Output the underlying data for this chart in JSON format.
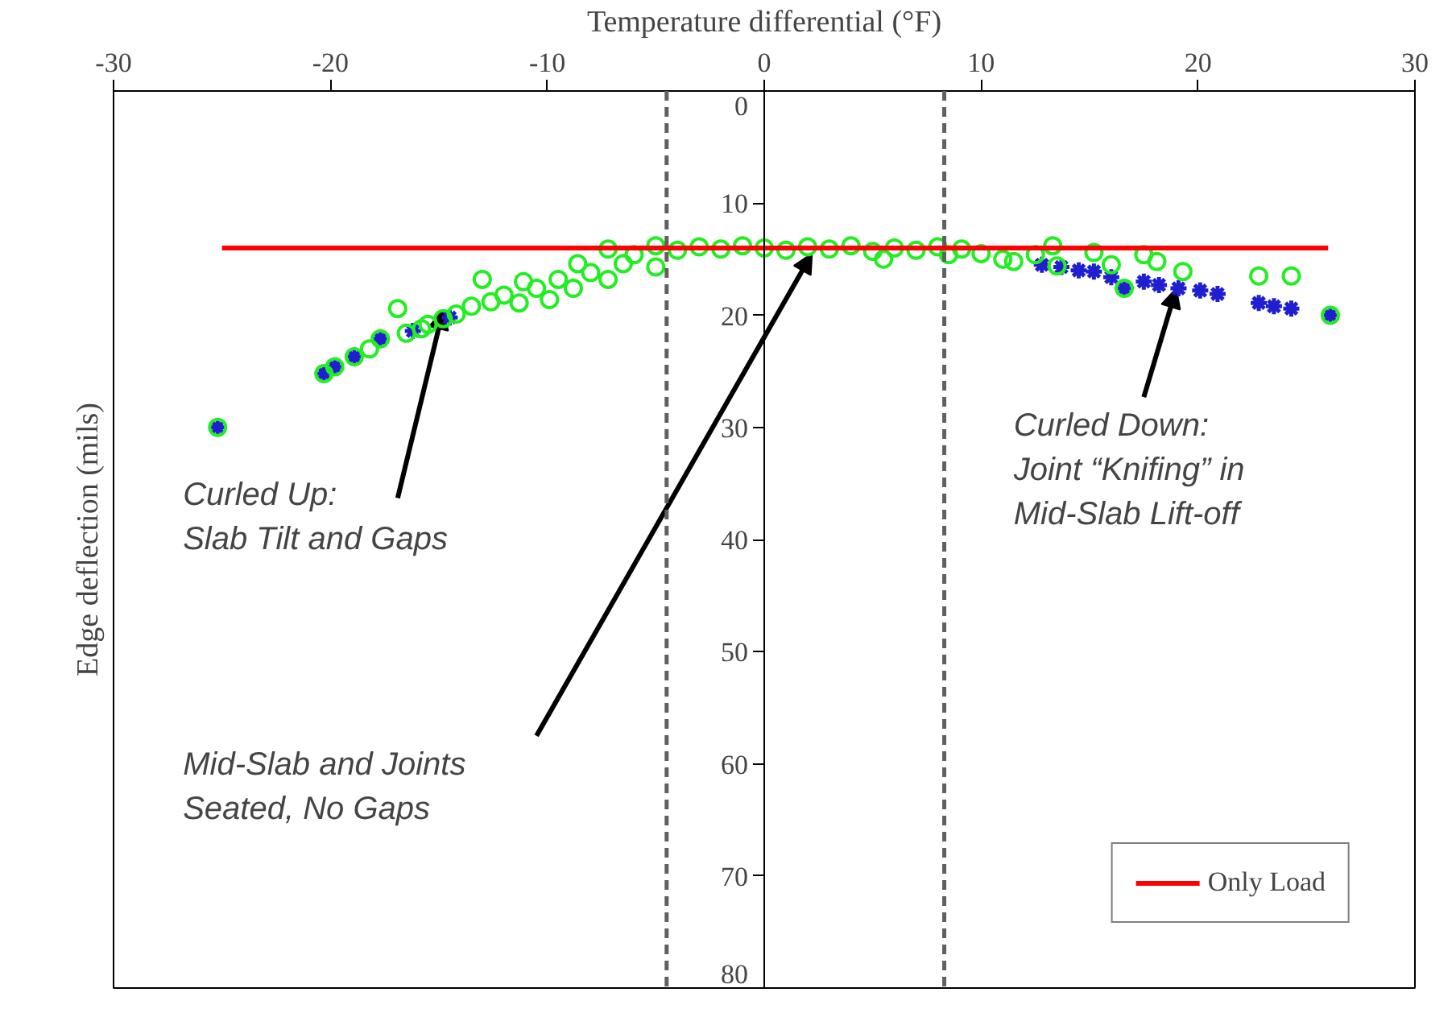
{
  "chart_data": {
    "type": "scatter",
    "xlabel": "Temperature differential (°F)",
    "ylabel": "Edge deflection (mils)",
    "xlim": [
      -30,
      30
    ],
    "xticks": [
      -30,
      -20,
      -10,
      0,
      10,
      20,
      30
    ],
    "ylim": [
      80,
      0
    ],
    "yticks": [
      0,
      10,
      20,
      30,
      40,
      50,
      60,
      70,
      80
    ],
    "grid": false,
    "legend": "bottom right",
    "series": [
      {
        "marker": "cross",
        "color": "#1f1fd0",
        "x": [
          -25.2,
          -20.3,
          -19.8,
          -18.9,
          -17.7,
          -16.2,
          -14.5,
          -3.5,
          0,
          4.5,
          9.5,
          12.8,
          13.7,
          14.5,
          15.2,
          16,
          16.6,
          17.5,
          18.2,
          19.1,
          20.1,
          20.9,
          22.8,
          23.5,
          24.3,
          26.1
        ],
        "values": [
          30,
          25.2,
          24.6,
          23.7,
          22.1,
          21.4,
          20.2,
          null,
          null,
          null,
          null,
          15.5,
          15.7,
          16,
          16.1,
          16.6,
          17.6,
          17,
          17.3,
          17.6,
          17.8,
          18.1,
          18.9,
          19.2,
          19.4,
          20
        ]
      },
      {
        "marker": "circle",
        "color": "#22ee22",
        "x": [
          -25.2,
          -20.3,
          -19.8,
          -18.9,
          -18.2,
          -17.7,
          -16.9,
          -16.5,
          -15.8,
          -15.5,
          -14.8,
          -14.2,
          -13.5,
          -13,
          -12.6,
          -12,
          -11.3,
          -11.1,
          -10.5,
          -9.9,
          -9.5,
          -8.8,
          -8.6,
          -8,
          -7.2,
          -7.2,
          -6.5,
          -6,
          -5,
          -5,
          -4,
          -3,
          -2,
          -1,
          0,
          1,
          2,
          3,
          4,
          5,
          5.5,
          6,
          7,
          8,
          8.5,
          9.1,
          10,
          11,
          11.5,
          12.5,
          13.3,
          13.5,
          15.2,
          16,
          16.6,
          17.5,
          18.1,
          19.3,
          22.8,
          24.3,
          26.1
        ],
        "values": [
          30,
          25.2,
          24.6,
          23.7,
          23,
          22.1,
          19.4,
          21.6,
          21.2,
          20.8,
          20.3,
          19.9,
          19.2,
          16.8,
          18.8,
          18.2,
          18.9,
          17,
          17.6,
          18.6,
          16.8,
          17.6,
          15.4,
          16.2,
          16.8,
          14.1,
          15.4,
          14.6,
          15.7,
          13.8,
          14.2,
          13.9,
          14.1,
          13.8,
          14,
          14.2,
          13.9,
          14.1,
          13.8,
          14.3,
          15,
          14,
          14.2,
          13.9,
          14.6,
          14.1,
          14.5,
          15,
          15.2,
          14.6,
          13.8,
          15.6,
          14.4,
          15.5,
          17.6,
          14.6,
          15.2,
          16.1,
          16.5,
          16.5,
          20
        ]
      },
      {
        "type": "line",
        "name": "Only Load",
        "color": "#ff0000",
        "line_style": "solid",
        "marker": "none",
        "x": [
          -25,
          26
        ],
        "values": [
          14,
          14
        ]
      }
    ],
    "ref_lines": [
      {
        "axis": "x",
        "value": -4.5,
        "color": "#606060",
        "line_style": "dashed"
      },
      {
        "axis": "x",
        "value": 8.3,
        "color": "#606060",
        "line_style": "dashed"
      }
    ],
    "annotations": [
      {
        "text": "Curled Up:\nSlab Tilt and Gaps",
        "x": -14.8,
        "y": 19.5
      },
      "Mid-Slab and Joints\nSeated, No Gaps",
      {
        "text": "Curled Down:\nJoint “Knifing” in\nMid-Slab Lift-off",
        "x": 19,
        "y": 17.6
      }
    ]
  }
}
